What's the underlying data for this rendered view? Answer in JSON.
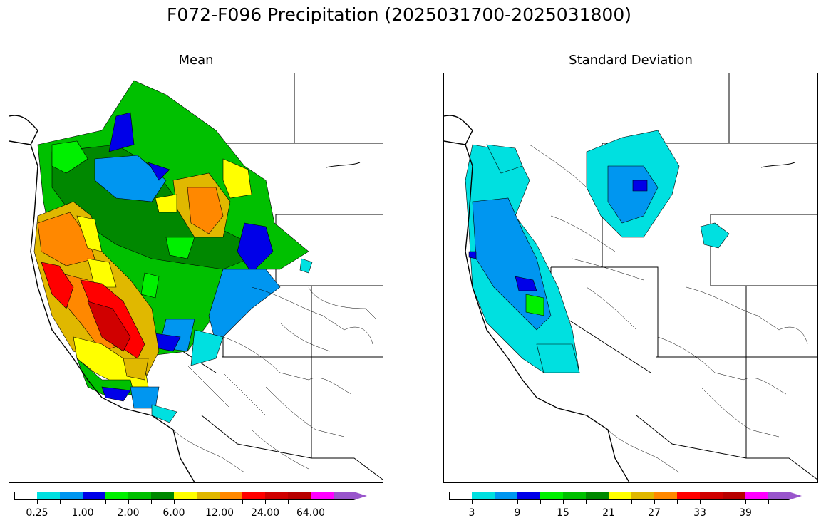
{
  "title": "F072-F096 Precipitation (2025031700-2025031800)",
  "panels": [
    {
      "title": "Mean",
      "colorbar": {
        "colors": [
          "#ffffff",
          "#00e0e0",
          "#0096f0",
          "#0000e8",
          "#00f000",
          "#00c000",
          "#008800",
          "#ffff00",
          "#e0b800",
          "#ff8800",
          "#ff0000",
          "#d00000",
          "#b80000",
          "#ff00ff",
          "#9955cc"
        ],
        "tick_labels": [
          "0.25",
          "1.00",
          "2.00",
          "6.00",
          "12.00",
          "24.00",
          "64.00"
        ]
      }
    },
    {
      "title": "Standard Deviation",
      "colorbar": {
        "colors": [
          "#ffffff",
          "#00e0e0",
          "#0096f0",
          "#0000e8",
          "#00f000",
          "#00c000",
          "#008800",
          "#ffff00",
          "#e0b800",
          "#ff8800",
          "#ff0000",
          "#d00000",
          "#b80000",
          "#ff00ff",
          "#9955cc"
        ],
        "tick_labels": [
          "3",
          "9",
          "15",
          "21",
          "27",
          "33",
          "39"
        ]
      }
    }
  ]
}
